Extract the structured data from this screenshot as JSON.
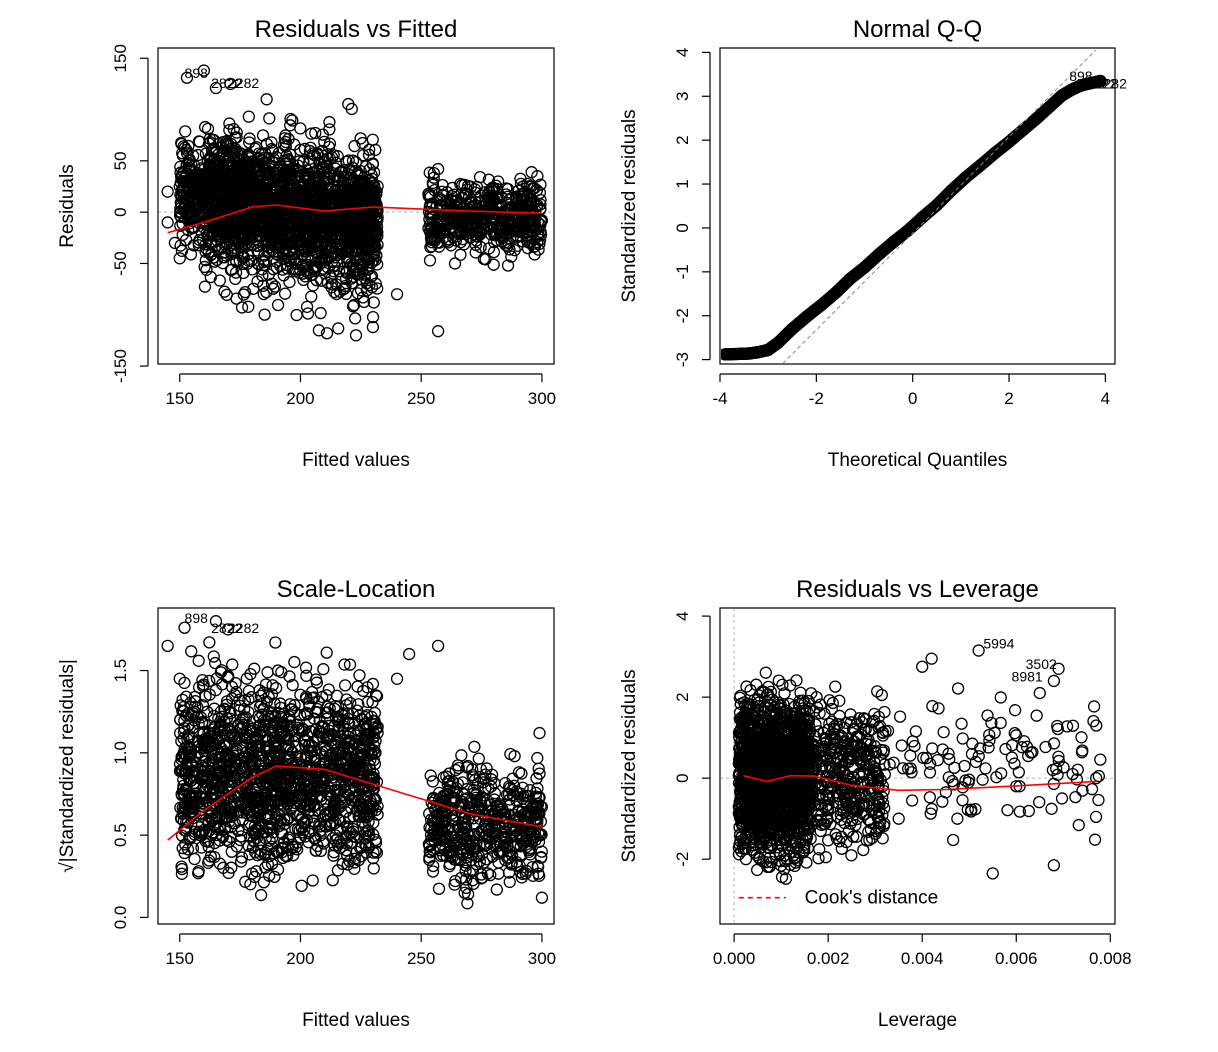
{
  "chart_data": [
    {
      "type": "scatter",
      "title": "Residuals vs Fitted",
      "xlabel": "Fitted values",
      "ylabel": "Residuals",
      "xlim": [
        141,
        305
      ],
      "ylim": [
        -148,
        160
      ],
      "xticks": [
        150,
        200,
        250,
        300
      ],
      "yticks": [
        -150,
        -50,
        0,
        50,
        150
      ],
      "grid": false,
      "annotations": [
        "898",
        "2822",
        "2282"
      ],
      "reference_line_y": 0,
      "clusters": [
        {
          "x": [
            150,
            232
          ],
          "y": [
            -60,
            80
          ],
          "n": 1400
        },
        {
          "x": [
            160,
            232
          ],
          "y": [
            -120,
            120
          ],
          "n": 900
        },
        {
          "x": [
            253,
            300
          ],
          "y": [
            -55,
            45
          ],
          "n": 500
        }
      ],
      "points": [
        [
          153,
          131
        ],
        [
          160,
          138
        ],
        [
          165,
          121
        ],
        [
          171,
          125
        ],
        [
          186,
          110
        ],
        [
          156,
          -15
        ],
        [
          173,
          -65
        ],
        [
          211,
          -118
        ],
        [
          223,
          -120
        ],
        [
          230,
          -112
        ],
        [
          240,
          -80
        ],
        [
          257,
          -116
        ],
        [
          264,
          -50
        ],
        [
          257,
          42
        ],
        [
          292,
          6
        ],
        [
          300,
          -8
        ],
        [
          148,
          -30
        ],
        [
          150,
          -45
        ],
        [
          145,
          -10
        ],
        [
          145,
          20
        ]
      ],
      "series": [
        {
          "type": "line",
          "color": "#ff0000",
          "x": [
            145,
            160,
            180,
            190,
            210,
            230,
            250,
            270,
            300
          ],
          "y": [
            -20,
            -10,
            5,
            7,
            1,
            5,
            3,
            1,
            -1
          ]
        }
      ]
    },
    {
      "type": "scatter",
      "title": "Normal Q-Q",
      "xlabel": "Theoretical Quantiles",
      "ylabel": "Standardized residuals",
      "xlim": [
        -4.0,
        4.2
      ],
      "ylim": [
        -3.1,
        4.1
      ],
      "xticks": [
        -4,
        -2,
        0,
        2,
        4
      ],
      "yticks": [
        -3,
        -2,
        -1,
        0,
        1,
        2,
        3,
        4
      ],
      "grid": false,
      "annotations": [
        "898",
        "2822",
        "2282"
      ],
      "points": [
        [
          -3.9,
          -2.88
        ],
        [
          -3.6,
          -2.87
        ],
        [
          -3.4,
          -2.86
        ],
        [
          -3.2,
          -2.83
        ],
        [
          -3.0,
          -2.78
        ],
        [
          -2.8,
          -2.62
        ],
        [
          -2.5,
          -2.3
        ],
        [
          -2.2,
          -2.02
        ],
        [
          -1.9,
          -1.76
        ],
        [
          -1.6,
          -1.48
        ],
        [
          -1.3,
          -1.16
        ],
        [
          -1.0,
          -0.9
        ],
        [
          -0.7,
          -0.6
        ],
        [
          -0.4,
          -0.32
        ],
        [
          -0.1,
          -0.06
        ],
        [
          0.2,
          0.24
        ],
        [
          0.5,
          0.52
        ],
        [
          0.8,
          0.85
        ],
        [
          1.1,
          1.15
        ],
        [
          1.4,
          1.42
        ],
        [
          1.7,
          1.7
        ],
        [
          2.0,
          1.96
        ],
        [
          2.3,
          2.24
        ],
        [
          2.6,
          2.52
        ],
        [
          2.9,
          2.82
        ],
        [
          3.1,
          3.02
        ],
        [
          3.3,
          3.15
        ],
        [
          3.5,
          3.25
        ],
        [
          3.7,
          3.3
        ],
        [
          3.9,
          3.35
        ]
      ],
      "series": [
        {
          "type": "line",
          "style": "dashed",
          "color": "#888888",
          "x": [
            -2.8,
            3.8
          ],
          "y": [
            -3.2,
            4.05
          ]
        }
      ]
    },
    {
      "type": "scatter",
      "title": "Scale-Location",
      "xlabel": "Fitted values",
      "ylabel": "√|Standardized residuals|",
      "xlim": [
        141,
        305
      ],
      "ylim": [
        -0.04,
        1.88
      ],
      "xticks": [
        150,
        200,
        250,
        300
      ],
      "yticks": [
        0.0,
        0.5,
        1.0,
        1.5
      ],
      "grid": false,
      "annotations": [
        "898",
        "2822",
        "2282"
      ],
      "clusters": [
        {
          "x": [
            150,
            232
          ],
          "y": [
            0.05,
            1.7
          ],
          "n": 1600
        },
        {
          "x": [
            253,
            300
          ],
          "y": [
            0.05,
            1.1
          ],
          "n": 500
        }
      ],
      "points": [
        [
          152,
          1.76
        ],
        [
          165,
          1.8
        ],
        [
          170,
          1.75
        ],
        [
          150,
          1.45
        ],
        [
          145,
          1.65
        ],
        [
          257,
          1.65
        ],
        [
          265,
          0.55
        ],
        [
          268,
          0.15
        ],
        [
          300,
          0.12
        ],
        [
          299,
          1.12
        ],
        [
          240,
          1.45
        ],
        [
          245,
          1.6
        ]
      ],
      "series": [
        {
          "type": "line",
          "color": "#ff0000",
          "x": [
            145,
            160,
            180,
            190,
            210,
            230,
            250,
            270,
            300
          ],
          "y": [
            0.47,
            0.65,
            0.85,
            0.92,
            0.9,
            0.81,
            0.72,
            0.63,
            0.55
          ]
        }
      ]
    },
    {
      "type": "scatter",
      "title": "Residuals vs Leverage",
      "xlabel": "Leverage",
      "ylabel": "Standardized residuals",
      "xlim": [
        -0.0003,
        0.0081
      ],
      "ylim": [
        -3.6,
        4.2
      ],
      "xticks": [
        0.0,
        0.002,
        0.004,
        0.006,
        0.008
      ],
      "xtick_labels": [
        "0.000",
        "0.002",
        "0.004",
        "0.006",
        "0.008"
      ],
      "yticks": [
        -2,
        0,
        2,
        4
      ],
      "grid": false,
      "annotations": [
        "5994",
        "3502",
        "8981"
      ],
      "legend": {
        "label": "Cook's distance",
        "color": "#ff0000",
        "style": "dashed",
        "position": "bottom-left"
      },
      "clusters": [
        {
          "x": [
            0.0001,
            0.0016
          ],
          "y": [
            -2.8,
            2.9
          ],
          "n": 1500
        },
        {
          "x": [
            0.0016,
            0.0032
          ],
          "y": [
            -2.5,
            2.6
          ],
          "n": 400
        },
        {
          "x": [
            0.0032,
            0.0078
          ],
          "y": [
            -2.3,
            3.0
          ],
          "n": 120
        }
      ],
      "points": [
        [
          0.0052,
          3.15
        ],
        [
          0.0069,
          2.7
        ],
        [
          0.0068,
          2.4
        ],
        [
          0.0065,
          2.1
        ],
        [
          0.0042,
          2.95
        ],
        [
          0.004,
          2.75
        ],
        [
          0.0077,
          0.0
        ],
        [
          0.0068,
          -2.15
        ],
        [
          0.0055,
          -2.35
        ],
        [
          0.0072,
          0.1
        ],
        [
          0.006,
          -0.2
        ],
        [
          0.0035,
          -1.0
        ],
        [
          0.0049,
          0.3
        ]
      ],
      "series": [
        {
          "type": "line",
          "color": "#ff0000",
          "x": [
            0.0002,
            0.0007,
            0.0012,
            0.0017,
            0.0025,
            0.0035,
            0.0045,
            0.006,
            0.0077
          ],
          "y": [
            0.06,
            -0.08,
            0.06,
            0.05,
            -0.18,
            -0.3,
            -0.28,
            -0.19,
            -0.08
          ]
        }
      ]
    }
  ]
}
